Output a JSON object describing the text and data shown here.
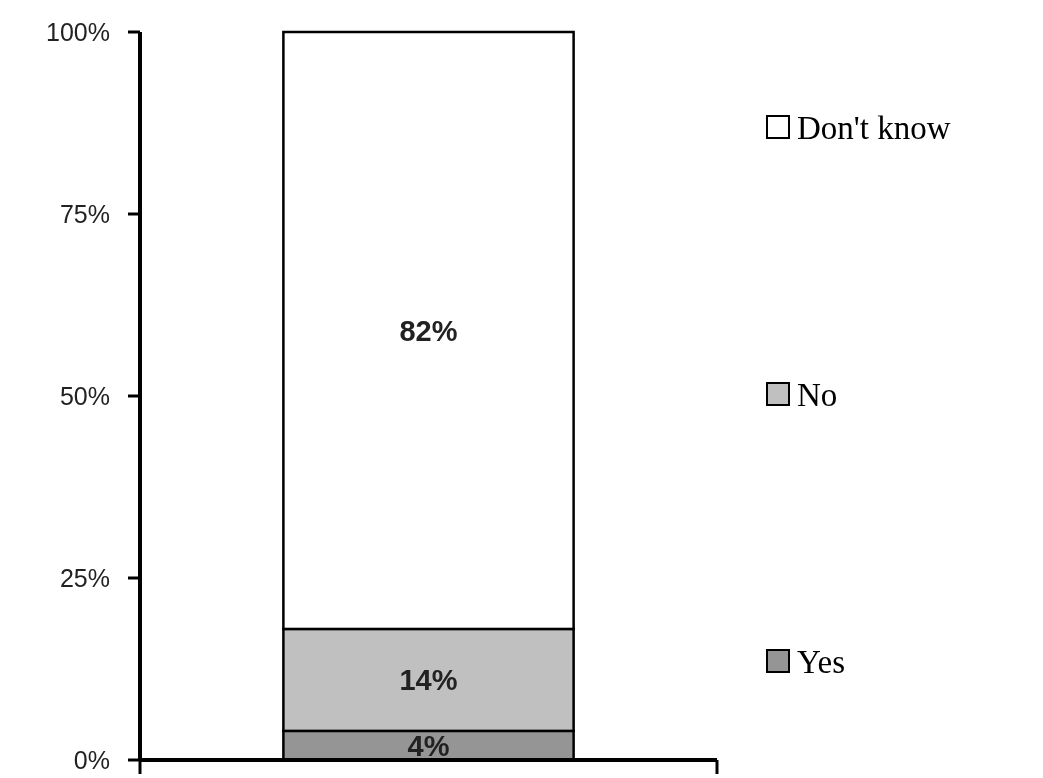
{
  "chart_data": {
    "type": "bar",
    "categories": [
      null
    ],
    "stacked": true,
    "legend": "right",
    "series": [
      {
        "name": "Yes",
        "color": "#959595",
        "values": [
          4
        ],
        "value_labels": [
          "4%"
        ]
      },
      {
        "name": "No",
        "color": "#c0c0c0",
        "values": [
          14
        ],
        "value_labels": [
          "14%"
        ]
      },
      {
        "name": "Don't know",
        "color": "#ffffff",
        "values": [
          82
        ],
        "value_labels": [
          "82%"
        ]
      }
    ],
    "ylim": [
      0,
      100
    ],
    "yticks": [
      {
        "value": 0,
        "label": "0%"
      },
      {
        "value": 25,
        "label": "25%"
      },
      {
        "value": 50,
        "label": "50%"
      },
      {
        "value": 75,
        "label": "75%"
      },
      {
        "value": 100,
        "label": "100%"
      }
    ]
  }
}
